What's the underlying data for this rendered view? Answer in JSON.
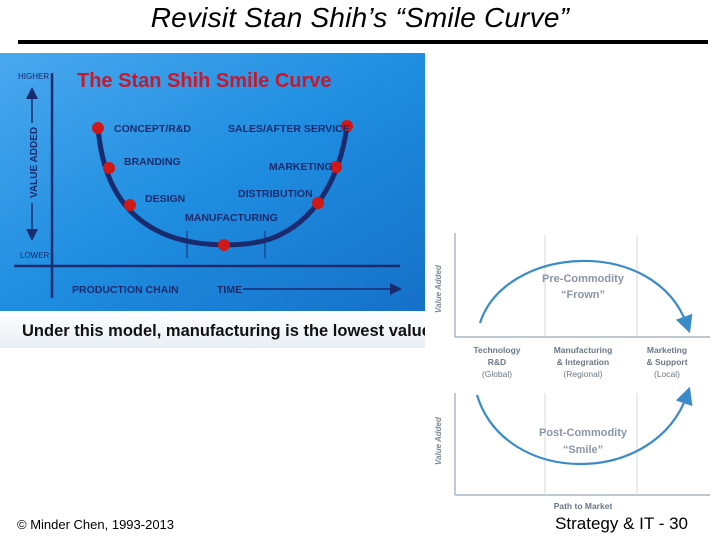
{
  "slide": {
    "title": "Revisit Stan Shih’s “Smile Curve”",
    "footer_left": "© Minder Chen, 1993-2013",
    "footer_right": "Strategy & IT - 30"
  },
  "left_panel": {
    "heading": "The Stan Shih Smile Curve",
    "axis_high": "HIGHER",
    "axis_low": "LOWER",
    "axis_value": "VALUE ADDED",
    "axis_chain": "PRODUCTION CHAIN",
    "axis_time": "TIME",
    "labels": {
      "concept": "CONCEPT/R&D",
      "branding": "BRANDING",
      "design": "DESIGN",
      "manufacturing": "MANUFACTURING",
      "sales": "SALES/AFTER SERVICE",
      "marketing": "MARKETING",
      "distribution": "DISTRIBUTION"
    },
    "caption": "Under this model, manufacturing is the lowest value input.",
    "colors": {
      "background": "#1f8ee0",
      "curve": "#1a2a6e",
      "dot": "#d01818",
      "heading": "#c8182c"
    }
  },
  "right_panel": {
    "axis_value_top": "Value Added",
    "axis_value_bottom": "Value Added",
    "frown_title": "Pre-Commodity",
    "frown_sub": "“Frown”",
    "smile_title": "Post-Commodity",
    "smile_sub": "“Smile”",
    "columns": [
      {
        "line1": "Technology",
        "line2": "R&D",
        "line3": "(Global)"
      },
      {
        "line1": "Manufacturing",
        "line2": "& Integration",
        "line3": "(Regional)"
      },
      {
        "line1": "Marketing",
        "line2": "& Support",
        "line3": "(Local)"
      }
    ],
    "path_label": "Path to Market",
    "colors": {
      "curve": "#3a8cc8",
      "text": "#7a8896",
      "title": "#8a96a4"
    }
  }
}
